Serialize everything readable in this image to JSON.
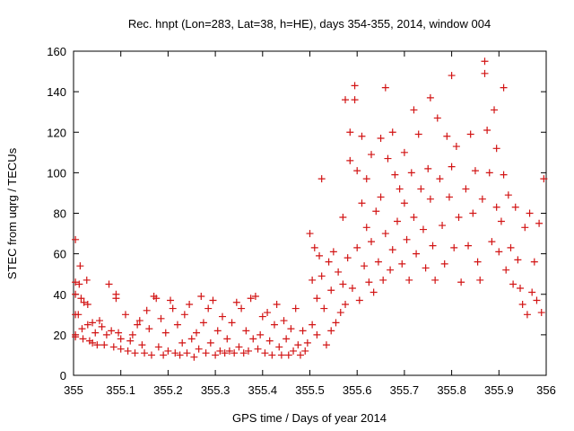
{
  "chart_data": {
    "type": "scatter",
    "title": "Rec. hnpt (Lon=283, Lat=38, h=HE), days 354-355, 2014, window 004",
    "xlabel": "GPS time / Days of year 2014",
    "ylabel": "STEC from uqrg / TECUs",
    "xlim": [
      355,
      356
    ],
    "ylim": [
      0,
      160
    ],
    "xticks": [
      355,
      355.1,
      355.2,
      355.3,
      355.4,
      355.5,
      355.6,
      355.7,
      355.8,
      355.9,
      356
    ],
    "xtick_labels": [
      "355",
      "355.1",
      "355.2",
      "355.3",
      "355.4",
      "355.5",
      "355.6",
      "355.7",
      "355.8",
      "355.9",
      "356"
    ],
    "yticks": [
      0,
      20,
      40,
      60,
      80,
      100,
      120,
      140,
      160
    ],
    "ytick_labels": [
      "0",
      "20",
      "40",
      "60",
      "80",
      "100",
      "120",
      "140",
      "160"
    ],
    "grid": false,
    "marker": "+",
    "color": "#d21414",
    "points": [
      [
        355.004,
        67
      ],
      [
        355.004,
        46
      ],
      [
        355.004,
        40
      ],
      [
        355.004,
        30
      ],
      [
        355.004,
        20
      ],
      [
        355.004,
        19
      ],
      [
        355.01,
        30
      ],
      [
        355.012,
        45
      ],
      [
        355.014,
        54
      ],
      [
        355.016,
        38
      ],
      [
        355.018,
        23
      ],
      [
        355.02,
        18
      ],
      [
        355.022,
        36
      ],
      [
        355.028,
        47
      ],
      [
        355.03,
        35
      ],
      [
        355.03,
        25
      ],
      [
        355.034,
        17
      ],
      [
        355.04,
        16
      ],
      [
        355.04,
        26
      ],
      [
        355.046,
        21
      ],
      [
        355.05,
        15
      ],
      [
        355.055,
        27
      ],
      [
        355.06,
        24
      ],
      [
        355.065,
        15
      ],
      [
        355.07,
        20
      ],
      [
        355.075,
        45
      ],
      [
        355.08,
        22
      ],
      [
        355.085,
        14
      ],
      [
        355.09,
        40
      ],
      [
        355.09,
        38
      ],
      [
        355.095,
        21
      ],
      [
        355.1,
        13
      ],
      [
        355.1,
        18
      ],
      [
        355.11,
        30
      ],
      [
        355.115,
        12
      ],
      [
        355.12,
        17
      ],
      [
        355.125,
        20
      ],
      [
        355.13,
        11
      ],
      [
        355.135,
        25
      ],
      [
        355.14,
        27
      ],
      [
        355.145,
        15
      ],
      [
        355.15,
        11
      ],
      [
        355.155,
        32
      ],
      [
        355.16,
        23
      ],
      [
        355.165,
        10
      ],
      [
        355.17,
        39
      ],
      [
        355.175,
        38
      ],
      [
        355.18,
        14
      ],
      [
        355.185,
        28
      ],
      [
        355.19,
        10
      ],
      [
        355.195,
        21
      ],
      [
        355.2,
        12
      ],
      [
        355.205,
        37
      ],
      [
        355.21,
        33
      ],
      [
        355.215,
        11
      ],
      [
        355.22,
        25
      ],
      [
        355.225,
        10
      ],
      [
        355.23,
        16
      ],
      [
        355.235,
        30
      ],
      [
        355.24,
        11
      ],
      [
        355.245,
        35
      ],
      [
        355.25,
        18
      ],
      [
        355.255,
        9
      ],
      [
        355.26,
        21
      ],
      [
        355.265,
        13
      ],
      [
        355.27,
        39
      ],
      [
        355.275,
        26
      ],
      [
        355.28,
        11
      ],
      [
        355.285,
        33
      ],
      [
        355.29,
        16
      ],
      [
        355.295,
        37
      ],
      [
        355.3,
        10
      ],
      [
        355.305,
        22
      ],
      [
        355.31,
        12
      ],
      [
        355.315,
        29
      ],
      [
        355.32,
        11
      ],
      [
        355.325,
        18
      ],
      [
        355.33,
        12
      ],
      [
        355.335,
        26
      ],
      [
        355.34,
        11
      ],
      [
        355.345,
        36
      ],
      [
        355.35,
        14
      ],
      [
        355.355,
        33
      ],
      [
        355.36,
        11
      ],
      [
        355.365,
        22
      ],
      [
        355.37,
        12
      ],
      [
        355.375,
        38
      ],
      [
        355.38,
        18
      ],
      [
        355.385,
        39
      ],
      [
        355.39,
        13
      ],
      [
        355.395,
        20
      ],
      [
        355.4,
        29
      ],
      [
        355.405,
        11
      ],
      [
        355.41,
        31
      ],
      [
        355.415,
        17
      ],
      [
        355.42,
        10
      ],
      [
        355.425,
        25
      ],
      [
        355.43,
        35
      ],
      [
        355.435,
        14
      ],
      [
        355.44,
        10
      ],
      [
        355.445,
        27
      ],
      [
        355.45,
        18
      ],
      [
        355.455,
        10
      ],
      [
        355.46,
        23
      ],
      [
        355.465,
        12
      ],
      [
        355.47,
        33
      ],
      [
        355.475,
        15
      ],
      [
        355.48,
        10
      ],
      [
        355.485,
        22
      ],
      [
        355.49,
        12
      ],
      [
        355.495,
        16
      ],
      [
        355.5,
        70
      ],
      [
        355.505,
        47
      ],
      [
        355.505,
        25
      ],
      [
        355.51,
        63
      ],
      [
        355.515,
        38
      ],
      [
        355.515,
        20
      ],
      [
        355.52,
        59
      ],
      [
        355.525,
        97
      ],
      [
        355.525,
        49
      ],
      [
        355.53,
        33
      ],
      [
        355.535,
        15
      ],
      [
        355.54,
        56
      ],
      [
        355.545,
        42
      ],
      [
        355.545,
        22
      ],
      [
        355.55,
        61
      ],
      [
        355.555,
        26
      ],
      [
        355.56,
        51
      ],
      [
        355.565,
        31
      ],
      [
        355.57,
        78
      ],
      [
        355.57,
        45
      ],
      [
        355.575,
        136
      ],
      [
        355.575,
        35
      ],
      [
        355.58,
        58
      ],
      [
        355.585,
        120
      ],
      [
        355.585,
        106
      ],
      [
        355.59,
        43
      ],
      [
        355.595,
        136
      ],
      [
        355.595,
        143
      ],
      [
        355.6,
        101
      ],
      [
        355.6,
        63
      ],
      [
        355.605,
        37
      ],
      [
        355.61,
        118
      ],
      [
        355.61,
        85
      ],
      [
        355.615,
        54
      ],
      [
        355.62,
        97
      ],
      [
        355.62,
        73
      ],
      [
        355.625,
        46
      ],
      [
        355.63,
        109
      ],
      [
        355.63,
        66
      ],
      [
        355.635,
        41
      ],
      [
        355.64,
        81
      ],
      [
        355.645,
        56
      ],
      [
        355.65,
        117
      ],
      [
        355.65,
        88
      ],
      [
        355.655,
        47
      ],
      [
        355.66,
        142
      ],
      [
        355.66,
        70
      ],
      [
        355.665,
        107
      ],
      [
        355.67,
        52
      ],
      [
        355.675,
        120
      ],
      [
        355.675,
        62
      ],
      [
        355.68,
        99
      ],
      [
        355.685,
        76
      ],
      [
        355.69,
        92
      ],
      [
        355.695,
        55
      ],
      [
        355.7,
        110
      ],
      [
        355.7,
        85
      ],
      [
        355.705,
        67
      ],
      [
        355.71,
        47
      ],
      [
        355.715,
        100
      ],
      [
        355.72,
        131
      ],
      [
        355.72,
        78
      ],
      [
        355.725,
        60
      ],
      [
        355.73,
        119
      ],
      [
        355.735,
        92
      ],
      [
        355.74,
        72
      ],
      [
        355.745,
        53
      ],
      [
        355.75,
        102
      ],
      [
        355.755,
        137
      ],
      [
        355.755,
        87
      ],
      [
        355.76,
        64
      ],
      [
        355.765,
        47
      ],
      [
        355.77,
        127
      ],
      [
        355.775,
        97
      ],
      [
        355.78,
        74
      ],
      [
        355.785,
        55
      ],
      [
        355.79,
        118
      ],
      [
        355.795,
        88
      ],
      [
        355.8,
        148
      ],
      [
        355.8,
        103
      ],
      [
        355.805,
        63
      ],
      [
        355.81,
        113
      ],
      [
        355.815,
        78
      ],
      [
        355.82,
        46
      ],
      [
        355.83,
        92
      ],
      [
        355.835,
        64
      ],
      [
        355.84,
        119
      ],
      [
        355.845,
        80
      ],
      [
        355.85,
        101
      ],
      [
        355.855,
        56
      ],
      [
        355.86,
        47
      ],
      [
        355.865,
        87
      ],
      [
        355.87,
        155
      ],
      [
        355.87,
        149
      ],
      [
        355.875,
        121
      ],
      [
        355.88,
        100
      ],
      [
        355.885,
        66
      ],
      [
        355.89,
        131
      ],
      [
        355.895,
        112
      ],
      [
        355.895,
        83
      ],
      [
        355.9,
        61
      ],
      [
        355.905,
        76
      ],
      [
        355.91,
        142
      ],
      [
        355.91,
        99
      ],
      [
        355.915,
        52
      ],
      [
        355.92,
        89
      ],
      [
        355.925,
        63
      ],
      [
        355.93,
        45
      ],
      [
        355.935,
        83
      ],
      [
        355.94,
        57
      ],
      [
        355.945,
        43
      ],
      [
        355.95,
        35
      ],
      [
        355.955,
        73
      ],
      [
        355.96,
        30
      ],
      [
        355.965,
        80
      ],
      [
        355.97,
        41
      ],
      [
        355.975,
        56
      ],
      [
        355.98,
        37
      ],
      [
        355.985,
        75
      ],
      [
        355.99,
        31
      ],
      [
        355.995,
        97
      ]
    ]
  }
}
